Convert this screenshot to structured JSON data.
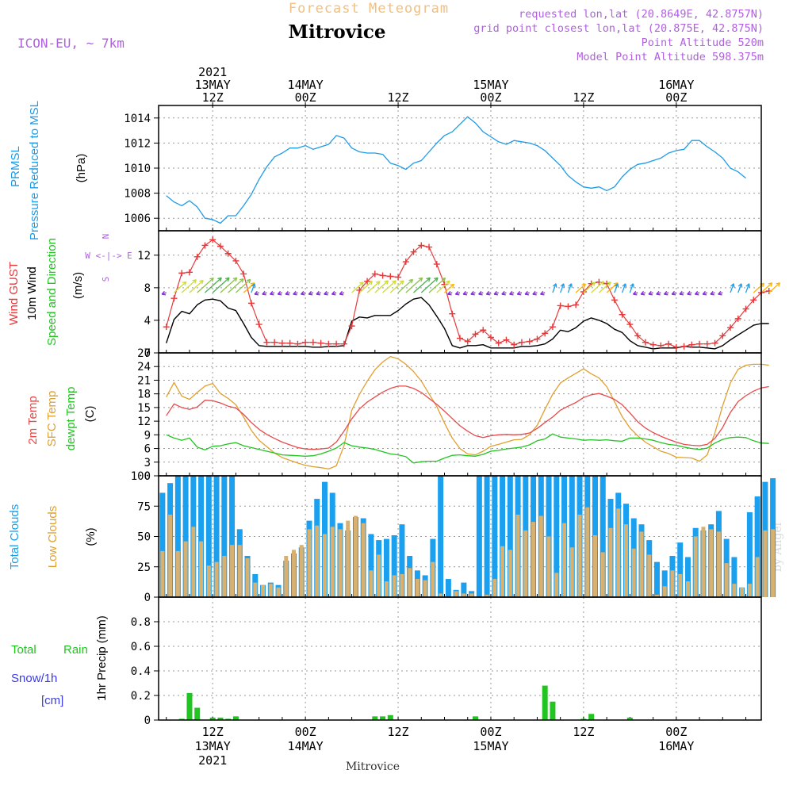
{
  "header": {
    "title_top": "Forecast Meteogram",
    "location": "Mitrovice",
    "model": "ICON-EU, ~ 7km",
    "requested": "requested lon,lat (20.8649E, 42.8757N)",
    "grid_point": "grid point closest lon,lat (20.875E, 42.875N)",
    "point_altitude": "Point Altitude 520m",
    "model_altitude": "Model Point Altitude 598.375m",
    "footer_location": "Mitrovice",
    "signature": "by Angel",
    "wind_compass": [
      "N",
      "W <-|-> E",
      "S"
    ]
  },
  "colors": {
    "pressure": "#1e9be8",
    "gust": "#e8383a",
    "wind": "#000000",
    "temp2m": "#e84a4a",
    "sfc_temp": "#e0a030",
    "dewpt": "#22c422",
    "total_clouds": "#1aa0ee",
    "low_clouds": "#d8b070",
    "rain": "#22c422",
    "snow": "#3a3aee",
    "arrows_calm": "#8a2be2",
    "header_purple": "#b060e0",
    "header_orange": "#f0c080"
  },
  "time_axis": {
    "top_labels": [
      {
        "h": 12,
        "lines": [
          "2021",
          "13MAY",
          "12Z"
        ]
      },
      {
        "h": 24,
        "lines": [
          "14MAY",
          "00Z"
        ]
      },
      {
        "h": 36,
        "lines": [
          "12Z"
        ]
      },
      {
        "h": 48,
        "lines": [
          "15MAY",
          "00Z"
        ]
      },
      {
        "h": 60,
        "lines": [
          "12Z"
        ]
      },
      {
        "h": 72,
        "lines": [
          "16MAY",
          "00Z"
        ]
      }
    ],
    "bottom_labels": [
      {
        "h": 12,
        "lines": [
          "12Z",
          "13MAY",
          "2021"
        ]
      },
      {
        "h": 24,
        "lines": [
          "00Z",
          "14MAY"
        ]
      },
      {
        "h": 36,
        "lines": [
          "12Z"
        ]
      },
      {
        "h": 48,
        "lines": [
          "00Z",
          "15MAY"
        ]
      },
      {
        "h": 60,
        "lines": [
          "12Z"
        ]
      },
      {
        "h": 72,
        "lines": [
          "00Z",
          "16MAY"
        ]
      }
    ]
  },
  "panel_labels": {
    "pressure": [
      "PRMSL",
      "Pressure Reduced to MSL",
      "(hPa)"
    ],
    "wind": [
      "Wind GUST",
      "10m Wind",
      "Speed and Direction",
      "(m/s)"
    ],
    "temp": [
      "2m Temp",
      "SFC Temp",
      "dewpt Temp",
      "(C)"
    ],
    "clouds": [
      "Total Clouds",
      "Low Clouds",
      "(%)"
    ],
    "precip": [
      "Total",
      "Rain",
      "Snow/1h",
      "[cm]",
      "1hr Precip (mm)"
    ]
  },
  "chart_data": [
    {
      "type": "line",
      "title": "PRMSL Pressure Reduced to MSL",
      "ylabel": "(hPa)",
      "ylim": [
        1005,
        1015
      ],
      "yticks": [
        1006,
        1008,
        1010,
        1012,
        1014
      ],
      "x_hours_start": 6,
      "series": [
        {
          "name": "PRMSL",
          "values": [
            1007.8,
            1007.3,
            1007.0,
            1007.4,
            1006.9,
            1006.0,
            1005.9,
            1005.6,
            1006.2,
            1006.2,
            1007.0,
            1007.9,
            1009.1,
            1010.1,
            1010.9,
            1011.2,
            1011.6,
            1011.6,
            1011.8,
            1011.5,
            1011.7,
            1011.9,
            1012.6,
            1012.4,
            1011.6,
            1011.3,
            1011.2,
            1011.2,
            1011.1,
            1010.4,
            1010.2,
            1009.9,
            1010.4,
            1010.6,
            1011.3,
            1012.0,
            1012.6,
            1012.9,
            1013.5,
            1014.1,
            1013.6,
            1012.9,
            1012.5,
            1012.1,
            1011.9,
            1012.2,
            1012.1,
            1012.0,
            1011.8,
            1011.4,
            1010.8,
            1010.2,
            1009.4,
            1008.9,
            1008.5,
            1008.4,
            1008.5,
            1008.2,
            1008.5,
            1009.3,
            1009.9,
            1010.3,
            1010.4,
            1010.6,
            1010.8,
            1011.2,
            1011.4,
            1011.5,
            1012.2,
            1012.2,
            1011.7,
            1011.3,
            1010.8,
            1010.0,
            1009.7,
            1009.2
          ]
        }
      ]
    },
    {
      "type": "line",
      "title": "Wind GUST / 10m Wind Speed and Direction",
      "ylabel": "(m/s)",
      "ylim": [
        0,
        15
      ],
      "yticks": [
        0,
        4,
        8,
        12
      ],
      "x_hours_start": 6,
      "series": [
        {
          "name": "Wind GUST",
          "values": [
            3.2,
            6.7,
            9.8,
            9.9,
            11.8,
            13.2,
            13.9,
            13.1,
            12.2,
            11.3,
            9.7,
            6.1,
            3.5,
            1.3,
            1.3,
            1.2,
            1.2,
            1.1,
            1.3,
            1.3,
            1.2,
            1.1,
            1.1,
            1.1,
            3.3,
            7.7,
            8.8,
            9.7,
            9.5,
            9.4,
            9.3,
            11.2,
            12.4,
            13.2,
            13.0,
            10.9,
            8.4,
            4.8,
            1.8,
            1.4,
            2.3,
            2.8,
            1.9,
            1.2,
            1.6,
            1.0,
            1.3,
            1.4,
            1.7,
            2.4,
            3.2,
            5.8,
            5.7,
            5.9,
            7.5,
            8.5,
            8.7,
            8.5,
            6.5,
            4.7,
            3.5,
            2.1,
            1.3,
            1.0,
            0.9,
            1.1,
            0.7,
            0.8,
            1.0,
            1.1,
            1.1,
            1.2,
            2.1,
            3.1,
            4.2,
            5.4,
            6.5,
            7.4,
            7.6
          ]
        },
        {
          "name": "10m Wind",
          "values": [
            1.2,
            4.1,
            5.1,
            4.8,
            5.9,
            6.5,
            6.6,
            6.4,
            5.5,
            5.2,
            3.6,
            1.9,
            0.9,
            0.8,
            0.8,
            0.8,
            0.8,
            0.8,
            0.8,
            0.7,
            0.7,
            0.8,
            0.8,
            0.9,
            3.9,
            4.4,
            4.3,
            4.6,
            4.6,
            4.6,
            5.2,
            6.0,
            6.6,
            6.8,
            5.9,
            4.5,
            3.0,
            0.9,
            0.6,
            0.9,
            0.9,
            1.0,
            0.6,
            0.6,
            0.6,
            0.6,
            0.8,
            0.8,
            0.9,
            1.1,
            1.7,
            2.8,
            2.6,
            3.1,
            3.9,
            4.3,
            4.0,
            3.6,
            2.9,
            2.5,
            1.5,
            0.9,
            0.7,
            0.5,
            0.6,
            0.6,
            0.6,
            0.8,
            0.7,
            0.7,
            0.6,
            0.5,
            0.9,
            1.6,
            2.2,
            2.8,
            3.4,
            3.6,
            3.6
          ]
        }
      ],
      "direction_legend": [
        "N",
        "W <-|-> E",
        "S"
      ]
    },
    {
      "type": "line",
      "title": "2m Temp / SFC Temp / dewpt Temp",
      "ylabel": "(C)",
      "ylim": [
        0,
        27
      ],
      "yticks": [
        0,
        3,
        6,
        9,
        12,
        15,
        18,
        21,
        24,
        27
      ],
      "x_hours_start": 6,
      "series": [
        {
          "name": "2m Temp",
          "values": [
            13.2,
            15.8,
            15.0,
            14.6,
            15.1,
            16.6,
            16.5,
            16.0,
            15.3,
            14.9,
            13.5,
            11.7,
            10.2,
            9.1,
            8.2,
            7.4,
            6.8,
            6.2,
            5.9,
            5.8,
            5.9,
            6.1,
            7.4,
            9.8,
            12.5,
            14.7,
            16.2,
            17.3,
            18.4,
            19.2,
            19.7,
            19.7,
            19.2,
            18.3,
            17.0,
            15.7,
            14.2,
            12.6,
            11.0,
            9.8,
            8.8,
            8.4,
            8.8,
            9.0,
            9.1,
            9.0,
            9.1,
            9.4,
            10.4,
            11.7,
            12.9,
            14.4,
            15.3,
            16.1,
            17.2,
            17.8,
            18.1,
            17.5,
            16.8,
            15.6,
            13.8,
            11.9,
            10.5,
            9.5,
            8.7,
            8.0,
            7.4,
            6.9,
            6.7,
            6.6,
            6.9,
            8.2,
            10.6,
            13.9,
            16.3,
            17.6,
            18.6,
            19.3,
            19.6
          ]
        },
        {
          "name": "SFC Temp",
          "values": [
            17.3,
            20.5,
            17.5,
            16.8,
            18.3,
            19.7,
            20.3,
            18.1,
            17.0,
            15.6,
            12.9,
            10.0,
            7.8,
            6.4,
            5.0,
            4.0,
            3.4,
            2.8,
            2.3,
            2.0,
            1.8,
            1.5,
            2.2,
            6.6,
            14.4,
            17.9,
            20.8,
            23.3,
            25.0,
            26.2,
            25.7,
            24.5,
            22.9,
            20.8,
            18.0,
            15.2,
            11.6,
            8.3,
            6.0,
            4.8,
            4.6,
            5.4,
            6.5,
            6.9,
            7.4,
            7.9,
            8.0,
            9.0,
            11.1,
            14.6,
            17.9,
            20.4,
            21.5,
            22.5,
            23.5,
            22.4,
            21.5,
            19.6,
            16.3,
            13.0,
            10.5,
            8.8,
            7.4,
            6.4,
            5.4,
            4.9,
            4.1,
            4.0,
            3.9,
            3.2,
            4.6,
            9.4,
            15.4,
            20.4,
            23.4,
            24.3,
            24.5,
            24.5,
            24.3
          ]
        },
        {
          "name": "dewpt Temp",
          "values": [
            9.0,
            8.3,
            7.8,
            8.3,
            6.3,
            5.7,
            6.5,
            6.6,
            7.0,
            7.3,
            6.6,
            6.2,
            5.8,
            5.4,
            5.0,
            4.6,
            4.5,
            4.4,
            4.3,
            4.4,
            4.8,
            5.4,
            6.1,
            7.3,
            6.6,
            6.3,
            6.1,
            5.8,
            5.3,
            4.8,
            4.6,
            4.2,
            2.8,
            3.1,
            3.2,
            3.2,
            3.9,
            4.5,
            4.6,
            4.4,
            4.3,
            4.7,
            5.4,
            5.6,
            5.9,
            6.1,
            6.3,
            6.8,
            7.7,
            8.1,
            9.2,
            8.5,
            8.3,
            8.1,
            7.8,
            7.9,
            7.8,
            7.9,
            7.7,
            7.6,
            8.3,
            8.3,
            8.1,
            7.8,
            7.3,
            6.9,
            6.7,
            6.3,
            6.0,
            5.8,
            6.1,
            7.2,
            8.0,
            8.4,
            8.5,
            8.4,
            7.7,
            7.2,
            7.1
          ]
        }
      ]
    },
    {
      "type": "bar",
      "title": "Total Clouds / Low Clouds",
      "ylabel": "(%)",
      "ylim": [
        0,
        100
      ],
      "yticks": [
        0,
        25,
        50,
        75,
        100
      ],
      "x_hours_start": 6,
      "series": [
        {
          "name": "Total Clouds",
          "values": [
            86,
            94,
            100,
            100,
            100,
            100,
            100,
            100,
            100,
            100,
            56,
            34,
            19,
            10,
            12,
            10,
            30,
            36,
            41,
            63,
            81,
            95,
            86,
            61,
            55,
            66,
            65,
            52,
            47,
            48,
            51,
            60,
            34,
            22,
            18,
            48,
            100,
            15,
            6,
            12,
            5,
            100,
            100,
            100,
            100,
            100,
            100,
            100,
            100,
            100,
            100,
            100,
            100,
            100,
            100,
            100,
            100,
            100,
            81,
            86,
            77,
            65,
            60,
            47,
            29,
            22,
            34,
            45,
            33,
            57,
            55,
            60,
            71,
            48,
            33,
            8,
            70,
            83,
            95,
            98
          ]
        },
        {
          "name": "Low Clouds",
          "values": [
            38,
            68,
            38,
            46,
            58,
            46,
            26,
            29,
            34,
            43,
            43,
            32,
            12,
            10,
            11,
            8,
            34,
            39,
            43,
            56,
            59,
            52,
            58,
            56,
            63,
            67,
            61,
            22,
            35,
            13,
            18,
            19,
            24,
            15,
            14,
            29,
            3,
            0,
            5,
            3,
            3,
            0,
            2,
            15,
            42,
            39,
            68,
            55,
            62,
            67,
            50,
            20,
            61,
            41,
            68,
            74,
            51,
            37,
            57,
            73,
            60,
            40,
            54,
            35,
            2,
            9,
            22,
            19,
            13,
            50,
            58,
            56,
            54,
            28,
            11,
            8,
            11,
            33,
            55,
            56
          ]
        }
      ]
    },
    {
      "type": "bar",
      "title": "1hr Precip",
      "ylabel": "1hr Precip (mm)",
      "ylim": [
        0,
        1.0
      ],
      "yticks": [
        0,
        0.2,
        0.4,
        0.6,
        0.8
      ],
      "x_hours_start": 6,
      "series": [
        {
          "name": "Total Rain",
          "values": [
            0,
            0,
            0.01,
            0.22,
            0.1,
            0,
            0.02,
            0.02,
            0.01,
            0.03,
            0,
            0,
            0,
            0,
            0,
            0,
            0,
            0,
            0,
            0,
            0,
            0,
            0,
            0,
            0,
            0,
            0,
            0.03,
            0.03,
            0.04,
            0,
            0,
            0,
            0,
            0,
            0,
            0,
            0,
            0,
            0,
            0.03,
            0,
            0,
            0,
            0,
            0,
            0,
            0,
            0,
            0.28,
            0.15,
            0,
            0,
            0,
            0.01,
            0.05,
            0,
            0,
            0,
            0,
            0.02,
            0,
            0,
            0,
            0,
            0,
            0,
            0,
            0,
            0,
            0,
            0,
            0,
            0,
            0,
            0,
            0,
            0,
            0,
            0,
            0
          ]
        },
        {
          "name": "Snow/1h",
          "values": []
        }
      ]
    }
  ]
}
